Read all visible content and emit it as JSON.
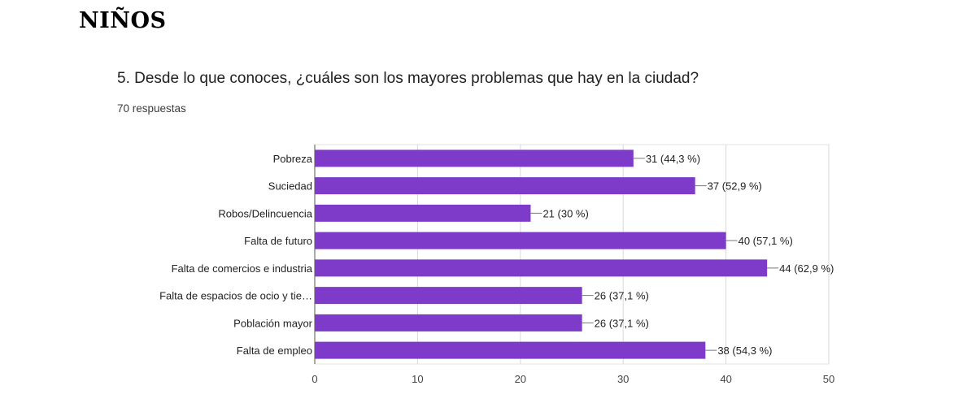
{
  "page": {
    "heading": "NIÑOS",
    "question": "5. Desde lo que conoces,  ¿cuáles son los mayores problemas que hay en la ciudad?",
    "responses": "70 respuestas"
  },
  "colors": {
    "bar": "#7e3ac8",
    "grid": "#d9d9d9",
    "axis": "#555555",
    "leader": "#777777"
  },
  "chart_data": {
    "type": "bar",
    "orientation": "horizontal",
    "categories": [
      "Pobreza",
      "Suciedad",
      "Robos/Delincuencia",
      "Falta de futuro",
      "Falta de comercios e industria",
      "Falta de espacios de ocio y tie…",
      "Población mayor",
      "Falta de empleo"
    ],
    "values": [
      31,
      37,
      21,
      40,
      44,
      26,
      26,
      38
    ],
    "data_labels": [
      "31 (44,3 %)",
      "37 (52,9 %)",
      "21 (30 %)",
      "40 (57,1 %)",
      "44 (62,9 %)",
      "26 (37,1 %)",
      "26 (37,1 %)",
      "38 (54,3 %)"
    ],
    "xlim": [
      0,
      50
    ],
    "xticks": [
      "0",
      "10",
      "20",
      "30",
      "40",
      "50"
    ],
    "grid": true
  }
}
